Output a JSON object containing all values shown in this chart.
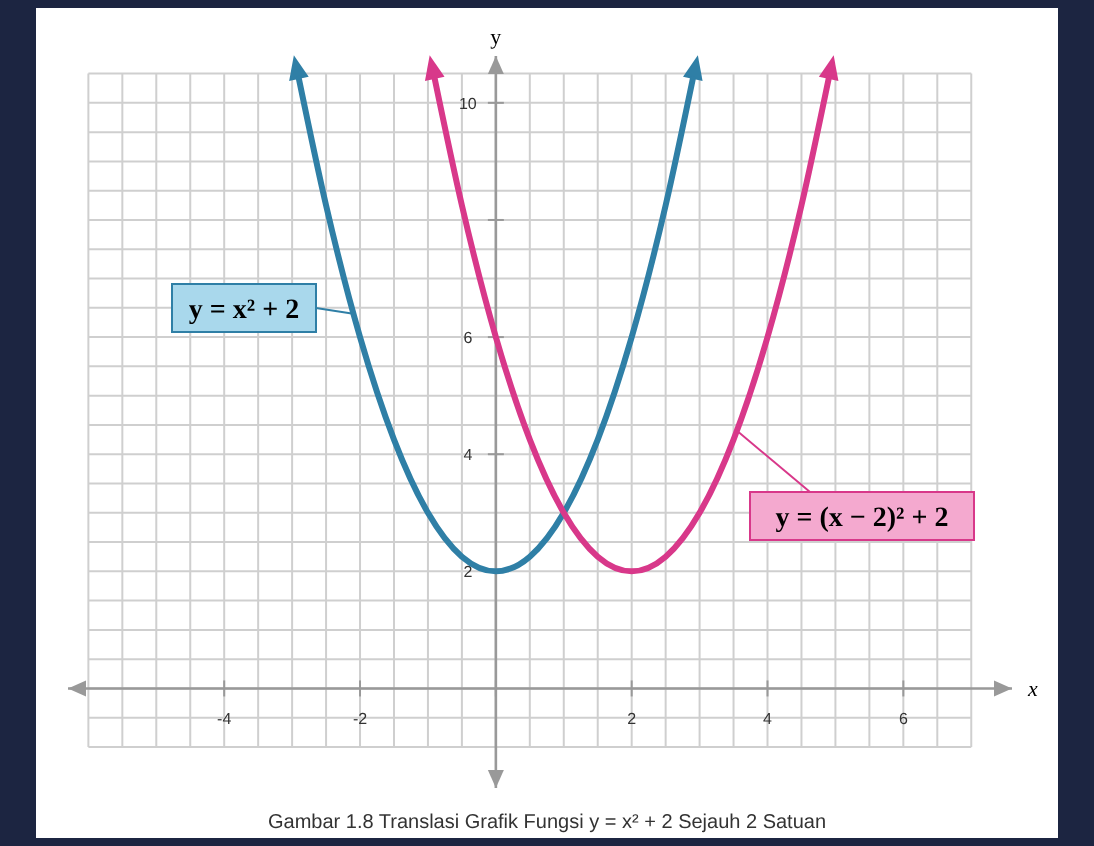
{
  "chart_data": {
    "type": "line",
    "xlabel": "x",
    "ylabel": "y",
    "xlim": [
      -6.3,
      7.6
    ],
    "ylim": [
      -1.7,
      10.8
    ],
    "xticks": [
      -4,
      -2,
      {
        "value": 0,
        "label": null
      },
      2,
      4,
      6
    ],
    "yticks": [
      2,
      4,
      6,
      {
        "value": 8,
        "label": null
      },
      10
    ],
    "grid": true,
    "marker": "none",
    "line_style": "solid",
    "series": [
      {
        "color": "#2f7fa6",
        "x": [
          -2.9,
          -2.5,
          -2,
          -1.5,
          -1,
          -0.5,
          0,
          0.5,
          1,
          1.5,
          2,
          2.5,
          2.9
        ],
        "values": [
          10.41,
          8.25,
          6,
          4.25,
          3,
          2.25,
          2,
          2.25,
          3,
          4.25,
          6,
          8.25,
          10.41
        ]
      },
      {
        "color": "#d8388a",
        "x": [
          -0.9,
          -0.5,
          0,
          0.5,
          1,
          1.5,
          2,
          2.5,
          3,
          3.5,
          4,
          4.5,
          4.9
        ],
        "values": [
          10.41,
          8.25,
          6,
          4.25,
          3,
          2.25,
          2,
          2.25,
          3,
          4.25,
          6,
          8.25,
          10.41
        ]
      }
    ],
    "annotations": [
      {
        "text": "y = x² + 2",
        "x": -2.1,
        "y": 6.4
      },
      {
        "text": "y = (x − 2)² + 2",
        "x": 3.55,
        "y": 4.4
      },
      "Gambar 1.8 Translasi Grafik Fungsi y = x² + 2 Sejauh 2 Satuan"
    ]
  }
}
